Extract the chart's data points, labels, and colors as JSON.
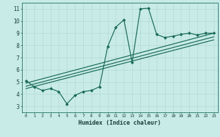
{
  "xlabel": "Humidex (Indice chaleur)",
  "background_color": "#c8ebe8",
  "grid_color": "#b8ddd9",
  "line_color": "#1a6b5a",
  "xlim": [
    -0.5,
    23.5
  ],
  "ylim": [
    2.5,
    11.5
  ],
  "series1_x": [
    0,
    1,
    2,
    3,
    4,
    5,
    6,
    7,
    8,
    9,
    10,
    11,
    12,
    13,
    14,
    15,
    16,
    17,
    18,
    19,
    20,
    21,
    22,
    23
  ],
  "series1_y": [
    5.1,
    4.6,
    4.3,
    4.45,
    4.2,
    3.2,
    3.9,
    4.2,
    4.3,
    4.6,
    7.9,
    9.5,
    10.1,
    6.6,
    11.0,
    11.05,
    8.9,
    8.65,
    8.75,
    8.9,
    9.0,
    8.85,
    9.0,
    9.0
  ],
  "series2_x": [
    0,
    23
  ],
  "series2_y": [
    4.9,
    9.0
  ],
  "series3_x": [
    0,
    23
  ],
  "series3_y": [
    4.65,
    8.7
  ],
  "series4_x": [
    0,
    23
  ],
  "series4_y": [
    4.45,
    8.45
  ]
}
